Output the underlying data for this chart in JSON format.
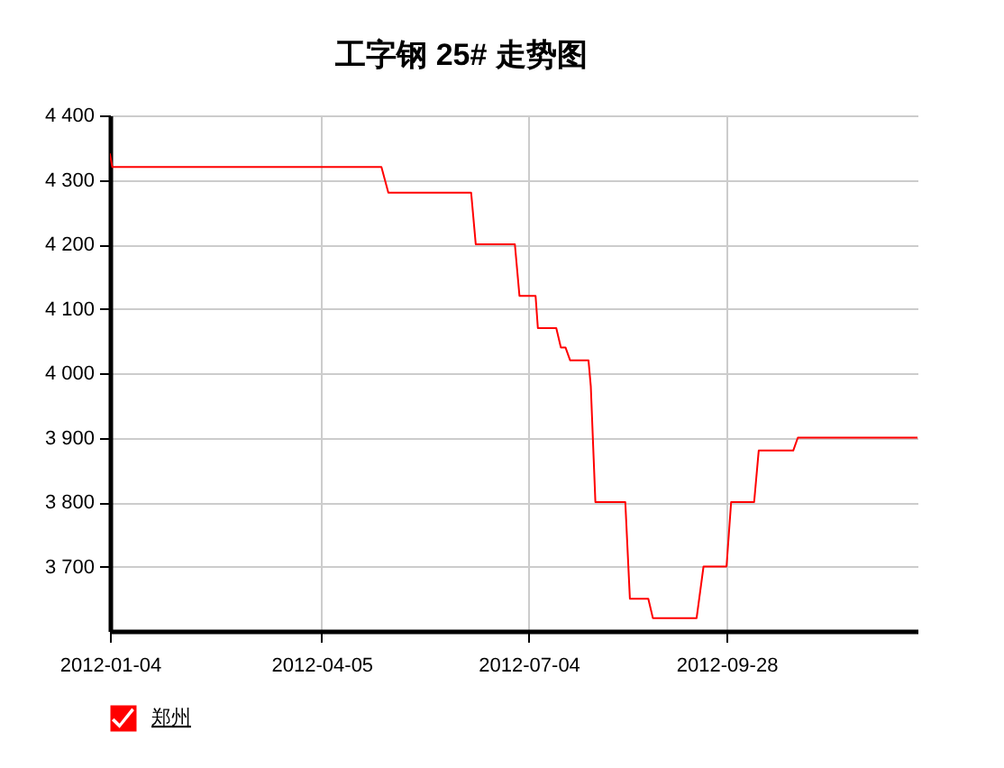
{
  "chart_data": {
    "type": "line",
    "title": "工字钢 25# 走势图",
    "x": [
      "2012-01-04",
      "2012-01-05",
      "2012-05-01",
      "2012-05-04",
      "2012-06-09",
      "2012-06-11",
      "2012-06-28",
      "2012-06-30",
      "2012-07-07",
      "2012-07-08",
      "2012-07-16",
      "2012-07-18",
      "2012-07-20",
      "2012-07-22",
      "2012-07-30",
      "2012-07-31",
      "2012-08-02",
      "2012-08-15",
      "2012-08-17",
      "2012-08-25",
      "2012-08-27",
      "2012-09-15",
      "2012-09-18",
      "2012-09-28",
      "2012-09-30",
      "2012-10-10",
      "2012-10-12",
      "2012-10-27",
      "2012-10-29",
      "2012-12-20"
    ],
    "series": [
      {
        "name": "郑州",
        "color": "#ff0000",
        "values": [
          4340,
          4320,
          4320,
          4280,
          4280,
          4200,
          4200,
          4120,
          4120,
          4070,
          4070,
          4040,
          4040,
          4020,
          4020,
          3980,
          3800,
          3800,
          3650,
          3650,
          3620,
          3620,
          3700,
          3700,
          3800,
          3800,
          3880,
          3880,
          3900,
          3900
        ]
      }
    ],
    "xlim": [
      "2012-01-04",
      "2012-12-20"
    ],
    "xticks": [
      "2012-01-04",
      "2012-04-05",
      "2012-07-04",
      "2012-09-28"
    ],
    "ylim": [
      3600,
      4400
    ],
    "yticks": [
      {
        "value": 3700,
        "label": "3 700"
      },
      {
        "value": 3800,
        "label": "3 800"
      },
      {
        "value": 3900,
        "label": "3 900"
      },
      {
        "value": 4000,
        "label": "4 000"
      },
      {
        "value": 4100,
        "label": "4 100"
      },
      {
        "value": 4200,
        "label": "4 200"
      },
      {
        "value": 4300,
        "label": "4 300"
      },
      {
        "value": 4400,
        "label": "4 400"
      }
    ],
    "grid": true,
    "legend": "bottom left"
  }
}
